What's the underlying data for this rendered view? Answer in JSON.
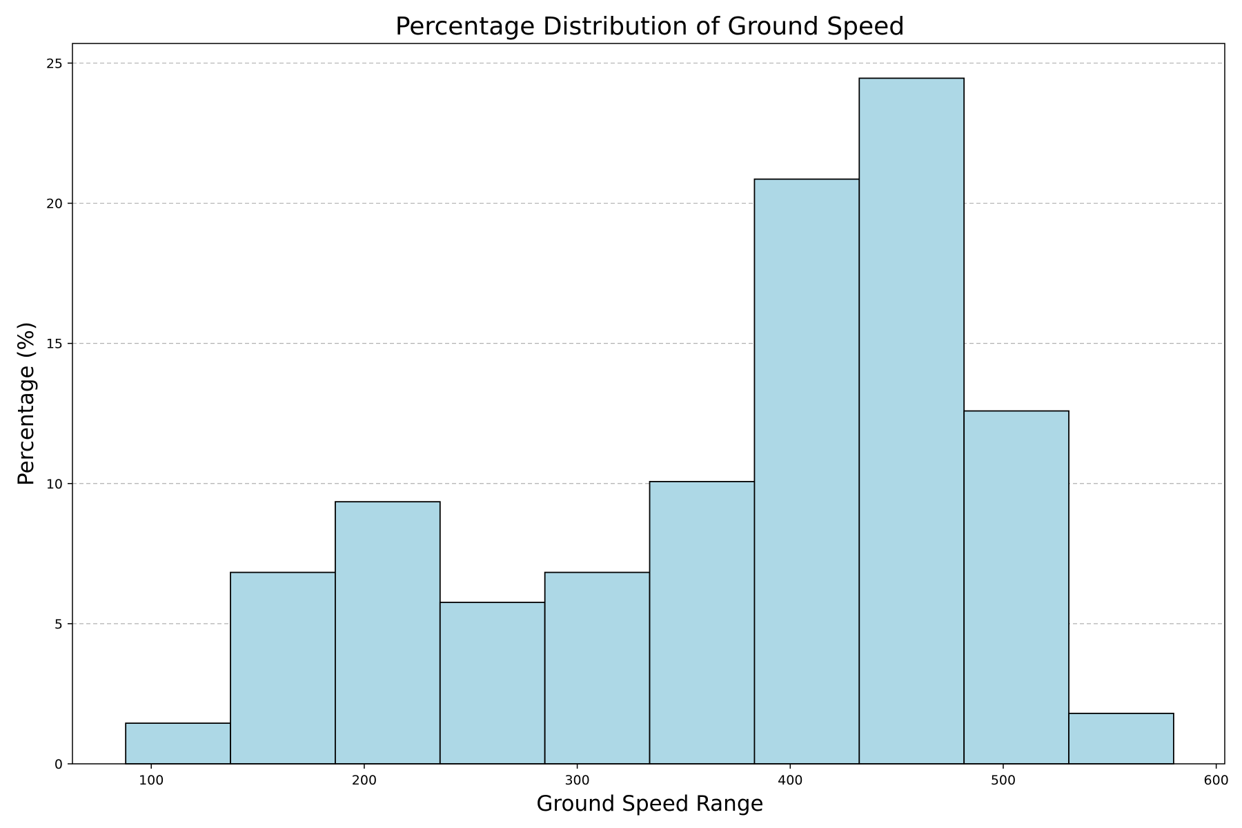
{
  "chart_data": {
    "type": "bar",
    "title": "Percentage Distribution of Ground Speed",
    "xlabel": "Ground Speed Range",
    "ylabel": "Percentage (%)",
    "xlim": [
      63,
      604
    ],
    "ylim": [
      0,
      25.7
    ],
    "xticks": [
      100,
      200,
      300,
      400,
      500,
      600
    ],
    "yticks": [
      0,
      5,
      10,
      15,
      20,
      25
    ],
    "grid": {
      "axis": "y",
      "style": "dashed"
    },
    "bin_edges": [
      88,
      137.2,
      186.4,
      235.6,
      284.8,
      334,
      383.2,
      432.4,
      481.6,
      530.8,
      580
    ],
    "values": [
      1.45,
      6.83,
      9.35,
      5.76,
      6.83,
      10.07,
      20.86,
      24.46,
      12.59,
      1.8
    ],
    "colors": {
      "bar_fill": "#add8e6",
      "bar_edge": "#000000",
      "grid": "#b0b0b0"
    }
  }
}
